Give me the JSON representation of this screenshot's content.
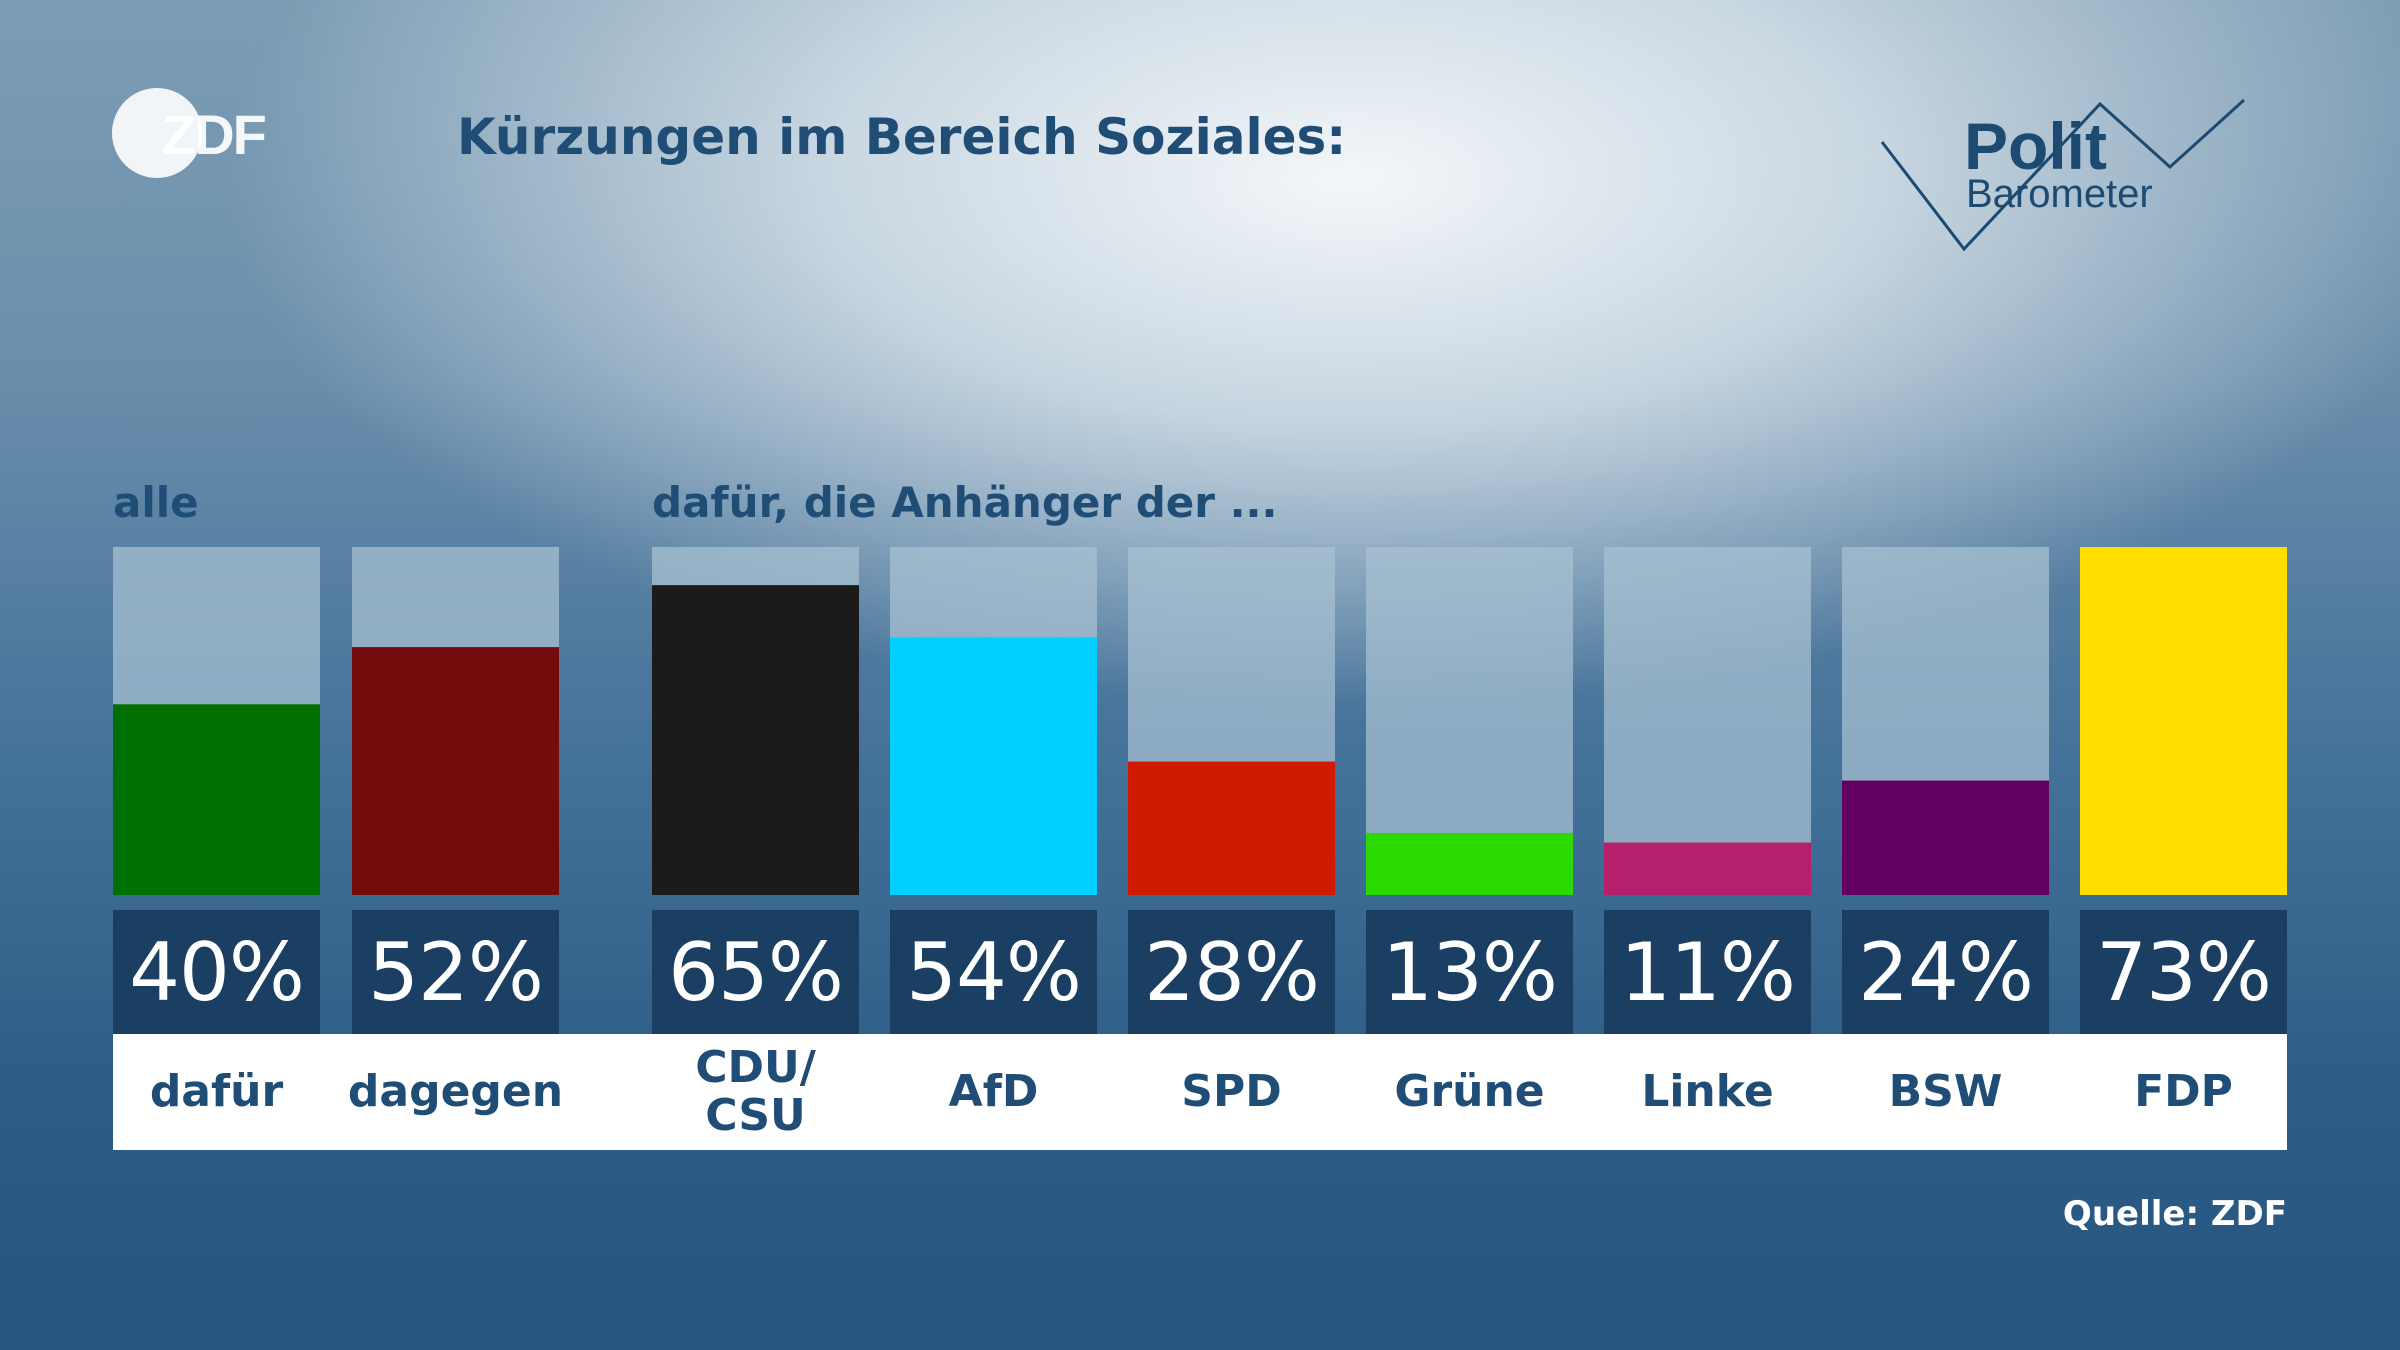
{
  "header": {
    "title": "Kürzungen im Bereich Soziales:",
    "broadcaster_logo": "ZDF",
    "show_logo_line1": "Polit",
    "show_logo_line2": "Barometer"
  },
  "footer": {
    "source": "Quelle: ZDF"
  },
  "colors": {
    "title": "#1f4d75",
    "track": "#a9c2d3",
    "value_box": "#1b3e63"
  },
  "chart_data": {
    "type": "bar",
    "title": "Kürzungen im Bereich Soziales:",
    "ylim": [
      0,
      73
    ],
    "groups": [
      {
        "label": "alle",
        "categories": [
          "dafür",
          "dagegen"
        ]
      },
      {
        "label": "dafür, die Anhänger der ...",
        "categories": [
          "CDU/\nCSU",
          "AfD",
          "SPD",
          "Grüne",
          "Linke",
          "BSW",
          "FDP"
        ]
      }
    ],
    "categories": [
      "dafür",
      "dagegen",
      "CDU/\nCSU",
      "AfD",
      "SPD",
      "Grüne",
      "Linke",
      "BSW",
      "FDP"
    ],
    "values": [
      40,
      52,
      65,
      54,
      28,
      13,
      11,
      24,
      73
    ],
    "value_labels": [
      "40%",
      "52%",
      "65%",
      "54%",
      "28%",
      "13%",
      "11%",
      "24%",
      "73%"
    ],
    "bar_colors": [
      "#007000",
      "#720c0d",
      "#1b1b1b",
      "#00cfff",
      "#cf1a00",
      "#2cd900",
      "#b4206c",
      "#62005f",
      "#ffdd00"
    ],
    "unit": "%"
  }
}
